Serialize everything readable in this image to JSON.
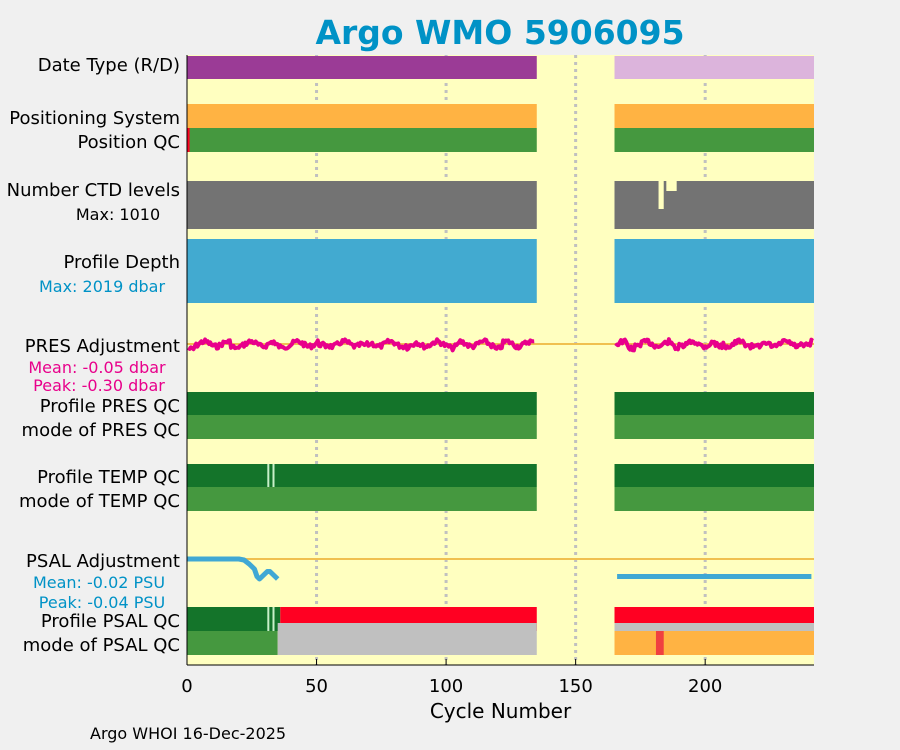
{
  "chart_data": {
    "type": "timeline",
    "title": "Argo WMO 5906095",
    "xlabel": "Cycle Number",
    "xlim": [
      0,
      242
    ],
    "xticks": [
      0,
      50,
      100,
      150,
      200
    ],
    "xtick_labels": [
      "0",
      "50",
      "100",
      "150",
      "200"
    ],
    "data_gap": [
      135,
      165
    ],
    "colors": {
      "background": "#ffffc0",
      "title": "#0092c6",
      "date_type_R": "#9b3b96",
      "date_type_D": "#dcb4dc",
      "positioning": "#ffb343",
      "qc_good": "#45983f",
      "qc_dark": "#14742a",
      "qc_bad": "#ff0022",
      "qc_gray": "#c0c0c0",
      "ctd": "#737373",
      "depth": "#42aad0",
      "pres": "#e8008b",
      "psal": "#40a8d4",
      "mean_line": "#f0c050",
      "light_mark": "#c8f0c8",
      "gridline": "#c0c0c0",
      "red_mark": "#f04040"
    },
    "rows": [
      {
        "key": "date_type",
        "label": "Date Type (R/D)",
        "segments": [
          [
            0,
            135,
            "R"
          ],
          [
            165,
            242,
            "D"
          ]
        ]
      },
      {
        "key": "positioning",
        "label": "Positioning System",
        "segments": [
          [
            0,
            135
          ],
          [
            165,
            242
          ]
        ]
      },
      {
        "key": "position_qc",
        "label": "Position QC",
        "segments": [
          [
            0,
            135
          ],
          [
            165,
            242
          ]
        ],
        "bad_cycles": [
          0
        ]
      },
      {
        "key": "ctd_levels",
        "label": "Number CTD levels",
        "annotation": "Max: 1010",
        "max_levels": 1010,
        "low_cycles": [
          182,
          183
        ],
        "segments": [
          [
            0,
            135
          ],
          [
            165,
            242
          ]
        ]
      },
      {
        "key": "profile_depth",
        "label": "Profile Depth",
        "annotation": "Max: 2019 dbar",
        "max_dbar": 2019,
        "segments": [
          [
            0,
            135
          ],
          [
            165,
            242
          ]
        ]
      },
      {
        "key": "pres_adj",
        "label": "PRES Adjustment",
        "mean_label": "Mean: -0.05 dbar",
        "peak_label": "Peak: -0.30 dbar",
        "mean_dbar": -0.05,
        "peak_dbar": -0.3,
        "segments": [
          [
            0,
            135
          ],
          [
            165,
            242
          ]
        ]
      },
      {
        "key": "profile_pres_qc",
        "label": "Profile PRES QC",
        "segments": [
          [
            0,
            135
          ],
          [
            165,
            242
          ]
        ]
      },
      {
        "key": "mode_pres_qc",
        "label": "mode of PRES QC",
        "segments": [
          [
            0,
            135
          ],
          [
            165,
            242
          ]
        ]
      },
      {
        "key": "profile_temp_qc",
        "label": "Profile TEMP QC",
        "segments": [
          [
            0,
            135
          ],
          [
            165,
            242
          ]
        ],
        "light_cycles": [
          31,
          33
        ]
      },
      {
        "key": "mode_temp_qc",
        "label": "mode of TEMP QC",
        "segments": [
          [
            0,
            135
          ],
          [
            165,
            242
          ]
        ]
      },
      {
        "key": "psal_adj",
        "label": "PSAL Adjustment",
        "mean_label": "Mean: -0.02 PSU",
        "peak_label": "Peak: -0.04 PSU",
        "mean_psu": -0.02,
        "peak_psu": -0.04,
        "curve": [
          [
            0,
            0.0
          ],
          [
            10,
            0.0
          ],
          [
            20,
            0.0
          ],
          [
            22,
            -0.002
          ],
          [
            24,
            -0.01
          ],
          [
            26,
            -0.02
          ],
          [
            27,
            -0.035
          ],
          [
            28,
            -0.04
          ],
          [
            29,
            -0.035
          ],
          [
            30,
            -0.03
          ],
          [
            31,
            -0.025
          ],
          [
            32,
            -0.025
          ],
          [
            33,
            -0.03
          ],
          [
            34,
            -0.035
          ],
          [
            35,
            -0.04
          ]
        ],
        "flat_segment": [
          166,
          241,
          -0.035
        ]
      },
      {
        "key": "profile_psal_qc",
        "label": "Profile PSAL QC",
        "good_until": 36,
        "segments": [
          [
            0,
            135
          ],
          [
            165,
            242
          ]
        ],
        "light_cycles": [
          31,
          33
        ]
      },
      {
        "key": "mode_psal_qc",
        "label": "mode of PSAL QC",
        "gray_from": 35,
        "segments": [
          [
            0,
            135
          ],
          [
            165,
            242
          ]
        ],
        "bad_cycles": [
          181,
          182,
          183
        ]
      }
    ]
  },
  "footer": {
    "text": "Argo WHOI 16-Dec-2025"
  }
}
